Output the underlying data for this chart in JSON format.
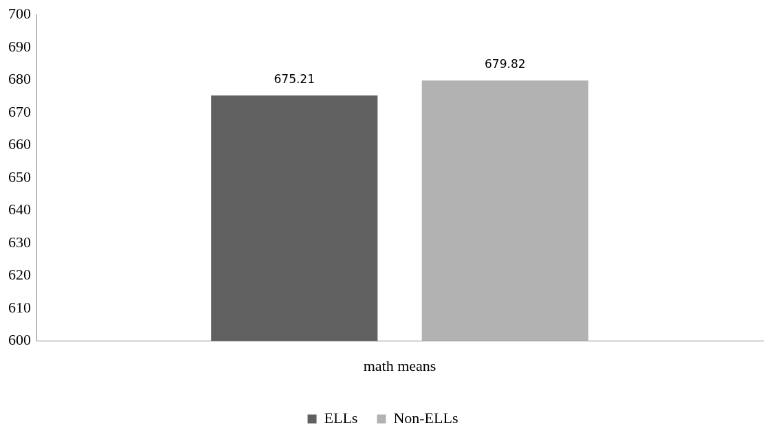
{
  "chart_data": {
    "type": "bar",
    "categories": [
      "math means"
    ],
    "series": [
      {
        "name": "ELLs",
        "color": "#606060",
        "values": [
          675.21
        ]
      },
      {
        "name": "Non-ELLs",
        "color": "#b2b2b2",
        "values": [
          679.82
        ]
      }
    ],
    "ylim": [
      600,
      700
    ],
    "yticks": [
      600,
      610,
      620,
      630,
      640,
      650,
      660,
      670,
      680,
      690,
      700
    ],
    "grid": false,
    "legend": "bottom",
    "data_labels": true
  }
}
